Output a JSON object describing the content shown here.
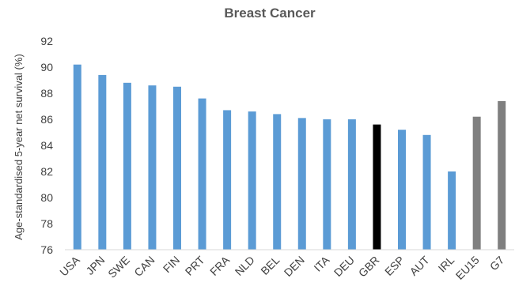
{
  "chart_data": {
    "type": "bar",
    "title": "Breast Cancer",
    "xlabel": "",
    "ylabel": "Age-standardised 5-year net survival (%)",
    "ylim": [
      76,
      92
    ],
    "yticks": [
      76,
      78,
      80,
      82,
      84,
      86,
      88,
      90,
      92
    ],
    "grid": false,
    "categories": [
      "USA",
      "JPN",
      "SWE",
      "CAN",
      "FIN",
      "PRT",
      "FRA",
      "NLD",
      "BEL",
      "DEN",
      "ITA",
      "DEU",
      "GBR",
      "ESP",
      "AUT",
      "IRL",
      "EU15",
      "G7"
    ],
    "values": [
      90.2,
      89.4,
      88.8,
      88.6,
      88.5,
      87.6,
      86.7,
      86.6,
      86.4,
      86.1,
      86.0,
      86.0,
      85.6,
      85.2,
      84.8,
      82.0,
      86.2,
      87.4
    ],
    "bar_colors": [
      "#5b9bd5",
      "#5b9bd5",
      "#5b9bd5",
      "#5b9bd5",
      "#5b9bd5",
      "#5b9bd5",
      "#5b9bd5",
      "#5b9bd5",
      "#5b9bd5",
      "#5b9bd5",
      "#5b9bd5",
      "#5b9bd5",
      "#000000",
      "#5b9bd5",
      "#5b9bd5",
      "#5b9bd5",
      "#7f7f7f",
      "#7f7f7f"
    ],
    "axis_color": "#d9d9d9",
    "text_color": "#404040",
    "title_color": "#595959"
  }
}
